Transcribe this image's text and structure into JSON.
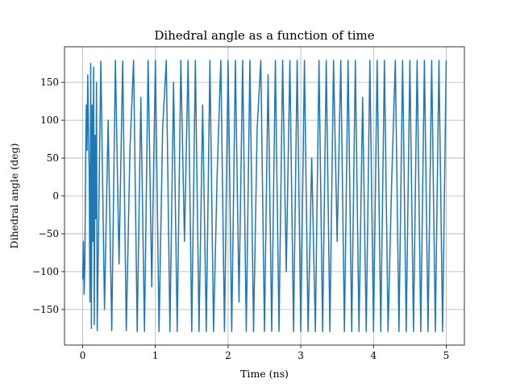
{
  "chart_data": {
    "type": "line",
    "title": "Dihedral angle as a function of time",
    "xlabel": "Time (ns)",
    "ylabel": "Dihedral angle (deg)",
    "xlim": [
      -0.25,
      5.25
    ],
    "ylim": [
      -197,
      197
    ],
    "xticks": [
      0,
      1,
      2,
      3,
      4,
      5
    ],
    "yticks": [
      -150,
      -100,
      -50,
      0,
      50,
      100,
      150
    ],
    "grid": true,
    "line_color": "#1f77b4",
    "series": [
      {
        "x": [
          0.0,
          0.01,
          0.02,
          0.03,
          0.04,
          0.05,
          0.06,
          0.07,
          0.08,
          0.09,
          0.1,
          0.11,
          0.12,
          0.13,
          0.14,
          0.15,
          0.16,
          0.17,
          0.18,
          0.19,
          0.2,
          0.25,
          0.3,
          0.35,
          0.4,
          0.45,
          0.5,
          0.55,
          0.6,
          0.65,
          0.7,
          0.75,
          0.8,
          0.85,
          0.9,
          0.95,
          1.0,
          1.05,
          1.1,
          1.15,
          1.2,
          1.25,
          1.3,
          1.35,
          1.4,
          1.45,
          1.5,
          1.55,
          1.6,
          1.65,
          1.7,
          1.75,
          1.8,
          1.85,
          1.9,
          1.95,
          2.0,
          2.05,
          2.1,
          2.15,
          2.2,
          2.25,
          2.3,
          2.35,
          2.4,
          2.45,
          2.5,
          2.55,
          2.6,
          2.65,
          2.7,
          2.75,
          2.8,
          2.85,
          2.9,
          2.95,
          3.0,
          3.05,
          3.1,
          3.15,
          3.2,
          3.25,
          3.3,
          3.35,
          3.4,
          3.45,
          3.5,
          3.55,
          3.6,
          3.65,
          3.7,
          3.75,
          3.8,
          3.85,
          3.9,
          3.95,
          4.0,
          4.05,
          4.1,
          4.15,
          4.2,
          4.25,
          4.3,
          4.35,
          4.4,
          4.45,
          4.5,
          4.55,
          4.6,
          4.65,
          4.7,
          4.75,
          4.8,
          4.85,
          4.9,
          4.95,
          5.0
        ],
        "values": [
          -110,
          -60,
          -130,
          -90,
          40,
          120,
          60,
          160,
          90,
          30,
          -140,
          175,
          -175,
          120,
          -60,
          170,
          -170,
          80,
          -30,
          150,
          -178,
          178,
          -150,
          100,
          -178,
          179,
          -90,
          178,
          -178,
          60,
          179,
          -179,
          130,
          -179,
          179,
          -120,
          179,
          -179,
          90,
          179,
          -179,
          150,
          -179,
          179,
          -60,
          179,
          -179,
          179,
          -179,
          120,
          -179,
          179,
          -179,
          30,
          179,
          -179,
          179,
          -179,
          179,
          -140,
          179,
          -179,
          179,
          -179,
          90,
          179,
          -179,
          160,
          -179,
          179,
          -179,
          179,
          -100,
          179,
          -179,
          179,
          -179,
          179,
          -179,
          50,
          -179,
          179,
          -179,
          179,
          -179,
          179,
          -60,
          179,
          -179,
          179,
          -179,
          179,
          -179,
          130,
          -179,
          179,
          -179,
          179,
          -179,
          179,
          -179,
          20,
          179,
          -179,
          179,
          -179,
          179,
          -179,
          179,
          -179,
          179,
          -179,
          179,
          -179,
          179,
          -179,
          179
        ]
      }
    ]
  }
}
